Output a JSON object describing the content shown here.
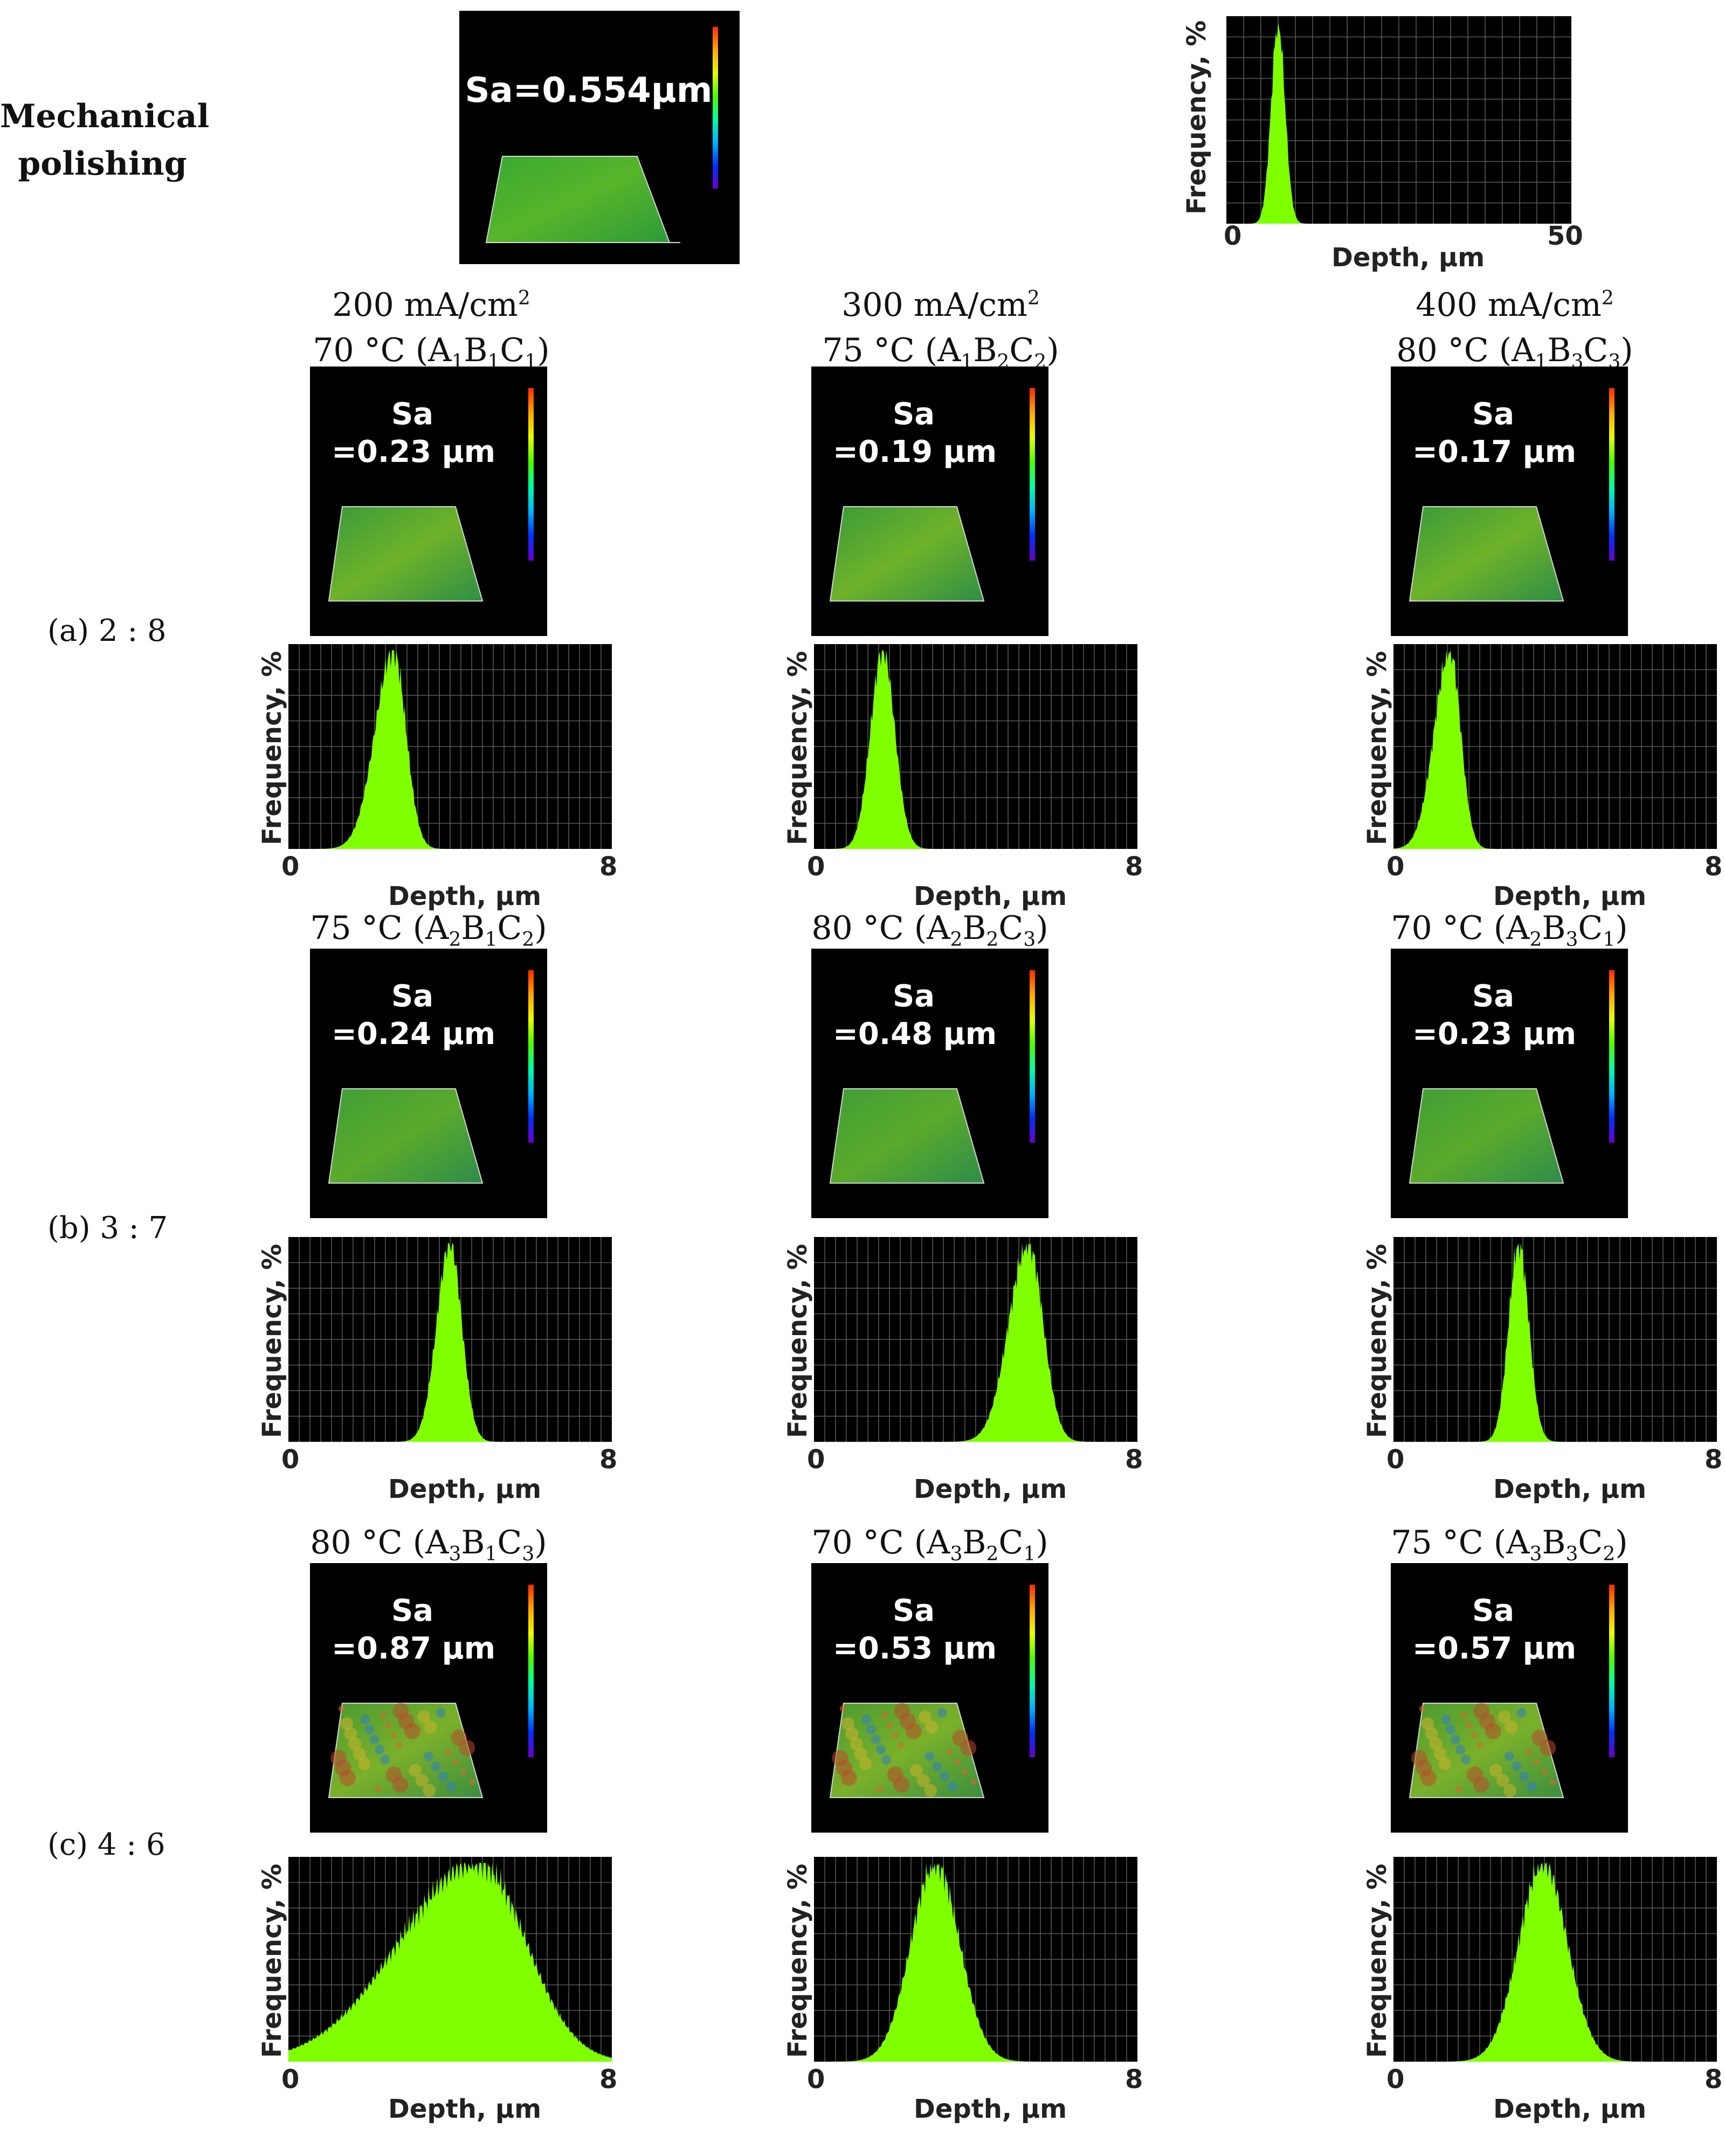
{
  "mechanical": {
    "label_line1": "Mechanical",
    "label_line2": "polishing",
    "sa": "Sa=0.554µm",
    "hist": {
      "xmin": "0",
      "xmax": "50",
      "peak": 7.5,
      "width": 1.0,
      "span": 50,
      "profile": "narrow"
    }
  },
  "headers": {
    "c1": {
      "current": "200 mA/cm",
      "sup": "2",
      "temp": "70 °C (A",
      "s1": "1",
      "b": "B",
      "s2": "1",
      "c": "C",
      "s3": "1",
      "close": ")"
    },
    "c2": {
      "current": "300 mA/cm",
      "sup": "2",
      "temp": "75 °C (A",
      "s1": "1",
      "b": "B",
      "s2": "2",
      "c": "C",
      "s3": "2",
      "close": ")"
    },
    "c3": {
      "current": "400 mA/cm",
      "sup": "2",
      "temp": "80 °C (A",
      "s1": "1",
      "b": "B",
      "s2": "3",
      "c": "C",
      "s3": "3",
      "close": ")"
    }
  },
  "rows": [
    {
      "label": "(a) 2 : 8",
      "cells": [
        {
          "sa1": "Sa",
          "sa2": "=0.23 μm",
          "hist": {
            "peak": 2.6,
            "width": 0.35,
            "skew": 0.3
          }
        },
        {
          "sa1": "Sa",
          "sa2": "=0.19 μm",
          "hist": {
            "peak": 1.7,
            "width": 0.3,
            "skew": 0.0
          }
        },
        {
          "sa1": "Sa",
          "sa2": "=0.17 μm",
          "hist": {
            "peak": 1.4,
            "width": 0.3,
            "skew": 0.3
          }
        }
      ]
    },
    {
      "label": "(b) 3 : 7",
      "titles": [
        {
          "temp": "75 °C (A",
          "s1": "2",
          "b": "B",
          "s2": "1",
          "c": "C",
          "s3": "2",
          "close": ")"
        },
        {
          "temp": "80 °C (A",
          "s1": "2",
          "b": "B",
          "s2": "2",
          "c": "C",
          "s3": "3",
          "close": ")"
        },
        {
          "temp": "70 °C (A",
          "s1": "2",
          "b": "B",
          "s2": "3",
          "c": "C",
          "s3": "1",
          "close": ")"
        }
      ],
      "cells": [
        {
          "sa1": "Sa",
          "sa2": "=0.24 μm",
          "hist": {
            "peak": 4.0,
            "width": 0.3,
            "skew": 0.1
          }
        },
        {
          "sa1": "Sa",
          "sa2": "=0.48 μm",
          "hist": {
            "peak": 5.3,
            "width": 0.4,
            "skew": 0.2
          }
        },
        {
          "sa1": "Sa",
          "sa2": "=0.23 μm",
          "hist": {
            "peak": 3.1,
            "width": 0.25,
            "skew": 0.0
          }
        }
      ]
    },
    {
      "label": "(c) 4 : 6",
      "titles": [
        {
          "temp": "80 °C (A",
          "s1": "3",
          "b": "B",
          "s2": "1",
          "c": "C",
          "s3": "3",
          "close": ")"
        },
        {
          "temp": "70 °C (A",
          "s1": "3",
          "b": "B",
          "s2": "2",
          "c": "C",
          "s3": "1",
          "close": ")"
        },
        {
          "temp": "75 °C (A",
          "s1": "3",
          "b": "B",
          "s2": "3",
          "c": "C",
          "s3": "2",
          "close": ")"
        }
      ],
      "cells": [
        {
          "sa1": "Sa",
          "sa2": "=0.87 μm",
          "hist": {
            "peak": 4.7,
            "width": 1.4,
            "skew": 0.4
          }
        },
        {
          "sa1": "Sa",
          "sa2": "=0.53 μm",
          "hist": {
            "peak": 3.0,
            "width": 0.6,
            "skew": 0.0
          }
        },
        {
          "sa1": "Sa",
          "sa2": "=0.57 μm",
          "hist": {
            "peak": 3.7,
            "width": 0.6,
            "skew": 0.0
          }
        }
      ]
    }
  ],
  "axes": {
    "ylabel": "Frequency, %",
    "xlabel": "Depth, μm",
    "mech_xlabel": "Depth, µm",
    "xmin": "0",
    "xmax": "8"
  },
  "colors": {
    "fill": "#7fff00",
    "grid": "#5a5a5a",
    "panel_bg": "#000000"
  }
}
